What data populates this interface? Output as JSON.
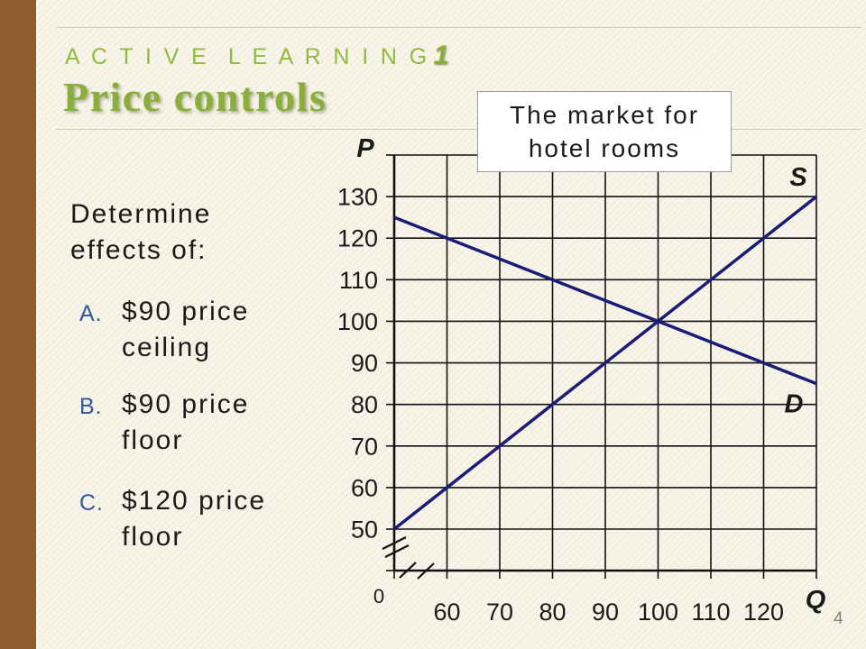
{
  "slide": {
    "kicker": "A C T I V E  L E A R N I N G",
    "kicker_number": "1",
    "title": "Price controls",
    "prompt": "Determine effects of:",
    "items": [
      {
        "label": "A.",
        "text": "$90 price ceiling"
      },
      {
        "label": "B.",
        "text": "$90 price floor"
      },
      {
        "label": "C.",
        "text": "$120 price floor"
      }
    ],
    "page_number": "4"
  },
  "colors": {
    "accent_bar": "#8E5B2D",
    "title_green": "#8AAE3A",
    "kicker_green": "#93BA3D",
    "item_label_blue": "#2F5A9E",
    "curve": "#1B1B78"
  },
  "chart_data": {
    "type": "line",
    "title": "The market for hotel rooms",
    "xlabel": "Q",
    "ylabel": "P",
    "origin_label": "0",
    "xlim": [
      50,
      130
    ],
    "ylim": [
      50,
      140
    ],
    "x_ticks": [
      60,
      70,
      80,
      90,
      100,
      110,
      120
    ],
    "y_ticks": [
      50,
      60,
      70,
      80,
      90,
      100,
      110,
      120,
      130
    ],
    "axis_break": true,
    "grid": true,
    "series": [
      {
        "name": "S",
        "x": [
          50,
          130
        ],
        "y": [
          50,
          130
        ]
      },
      {
        "name": "D",
        "x": [
          50,
          130
        ],
        "y": [
          125,
          85
        ]
      }
    ]
  }
}
